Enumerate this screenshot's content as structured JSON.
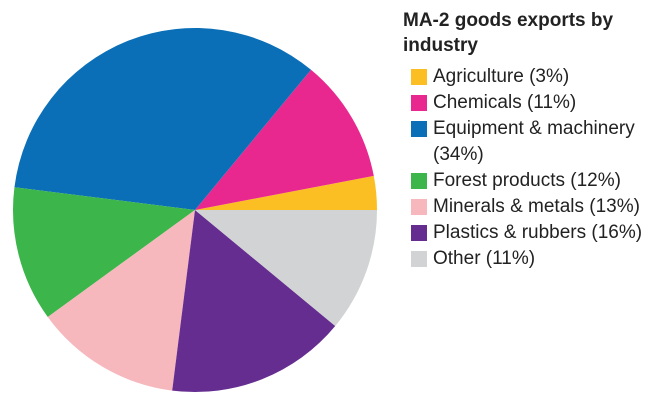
{
  "chart_data": {
    "type": "pie",
    "title": "MA-2 goods exports by industry",
    "categories": [
      "Agriculture (3%)",
      "Chemicals (11%)",
      "Equipment & machinery (34%)",
      "Forest products (12%)",
      "Minerals & metals (13%)",
      "Plastics & rubbers (16%)",
      "Other (11%)"
    ],
    "values": [
      3,
      11,
      34,
      12,
      13,
      16,
      11
    ],
    "colors": [
      "#fbbf24",
      "#e9288f",
      "#0b6fb8",
      "#3cb54a",
      "#f6b7bd",
      "#662d91",
      "#d1d3d4"
    ]
  }
}
